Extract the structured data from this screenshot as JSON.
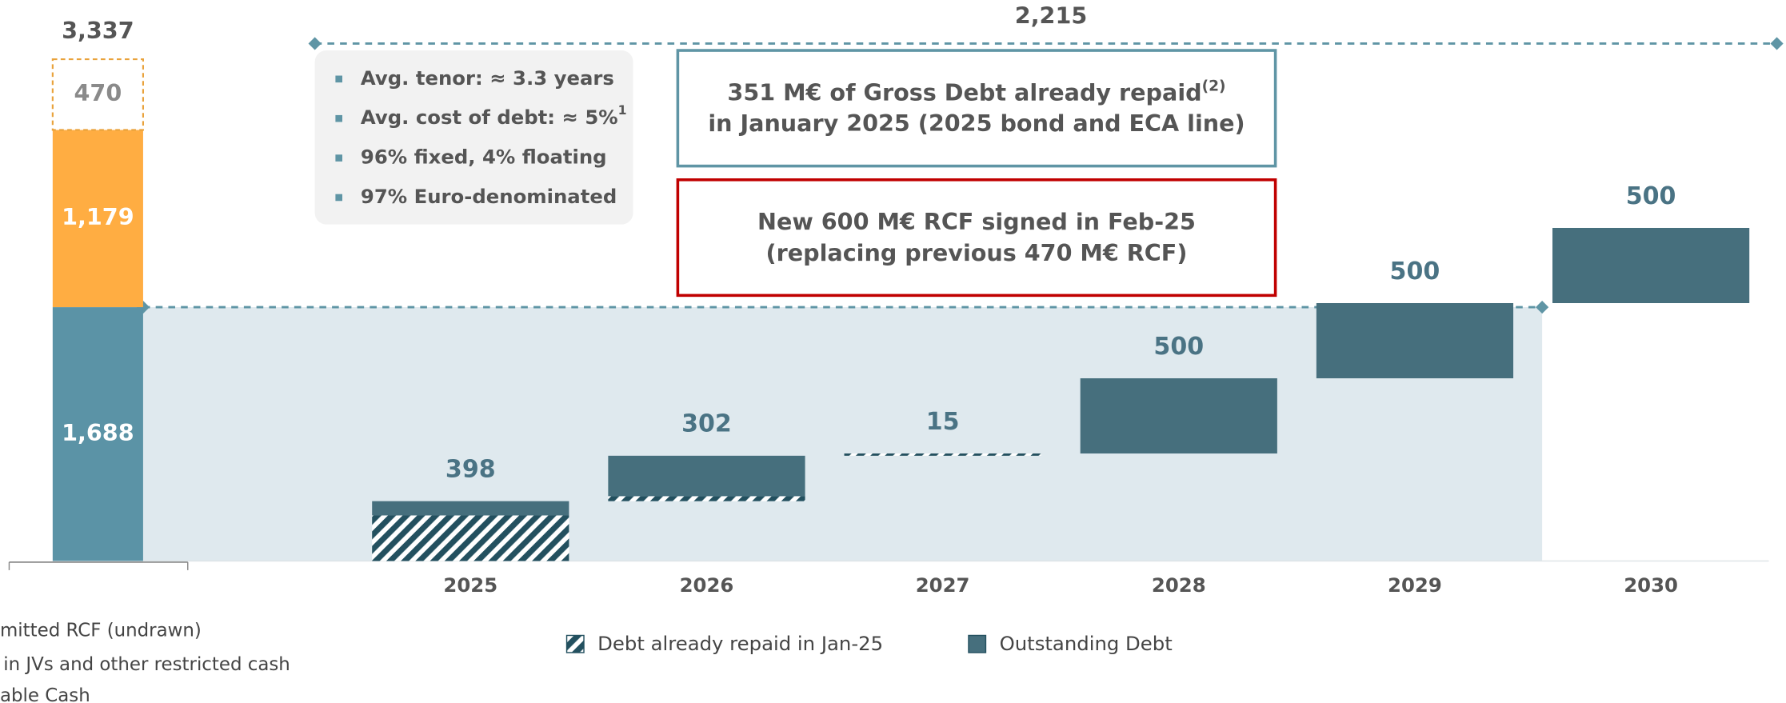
{
  "chart_data": {
    "type": "waterfall",
    "liquidity": {
      "series": [
        {
          "name": "able Cash",
          "color": "#5b93a6",
          "values": [
            1688
          ],
          "value_labels": [
            "1,688"
          ]
        },
        {
          "name": "in JVs and other restricted cash",
          "color": "#ffad42",
          "values": [
            1179
          ],
          "value_labels": [
            "1,179"
          ]
        },
        {
          "name": "mitted RCF (undrawn)",
          "color": "#e9a23b",
          "values": [
            470
          ],
          "value_labels": [
            "470"
          ]
        }
      ],
      "total": 3337,
      "total_label": "3,337"
    },
    "categories": [
      "2025",
      "2026",
      "2027",
      "2028",
      "2029",
      "2030"
    ],
    "series": [
      {
        "name": "Debt already repaid in Jan-25",
        "color": "#23505f",
        "values": [
          303,
          33,
          15,
          0,
          0,
          0
        ]
      },
      {
        "name": "Outstanding Debt",
        "color": "#466f7d",
        "values": [
          95,
          269,
          0,
          500,
          500,
          500
        ]
      }
    ],
    "totals": [
      398,
      302,
      15,
      500,
      500,
      500
    ],
    "maturity_total": 2215,
    "maturity_total_label": "2,215",
    "ylim": [
      0,
      3700
    ],
    "annotations": {
      "stats": [
        {
          "text": "Avg. tenor: ≈ 3.3 years"
        },
        {
          "text": "Avg. cost of debt: ≈ 5%",
          "sup": "1"
        },
        {
          "text": "96% fixed, 4% floating"
        },
        {
          "text": "97% Euro-denominated"
        }
      ],
      "repaid": {
        "line1": "351 M€ of Gross Debt already repaid",
        "sup": "(2)",
        "line2": "in January 2025 (2025 bond and ECA line)"
      },
      "rcf": {
        "line1": "New 600 M€ RCF signed in Feb-25",
        "line2": "(replacing previous 470 M€ RCF)"
      }
    }
  }
}
